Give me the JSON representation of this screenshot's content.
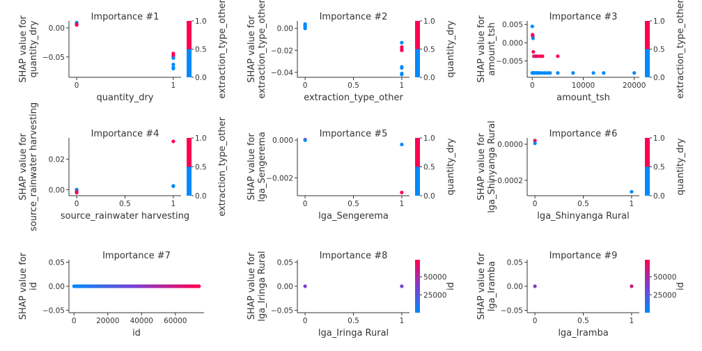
{
  "colors": {
    "low": "#008afb",
    "mid": "#7c3fd0",
    "high": "#ff0052"
  },
  "chart_data": [
    {
      "type": "scatter",
      "title": "Importance #1",
      "xlabel": "quantity_dry",
      "ylabel": [
        "SHAP value for",
        "quantity_dry"
      ],
      "xlim": [
        -0.08,
        1.08
      ],
      "ylim": [
        -0.085,
        0.012
      ],
      "xticks": [
        {
          "v": 0,
          "t": "0"
        },
        {
          "v": 1,
          "t": "1"
        }
      ],
      "yticks": [
        {
          "v": 0,
          "t": "0.00"
        },
        {
          "v": -0.05,
          "t": "−0.05"
        }
      ],
      "colorbar": {
        "label": "extraction_type_other",
        "ticks": [
          {
            "v": 0,
            "t": "0.0"
          },
          {
            "v": 0.5,
            "t": "0.5"
          },
          {
            "v": 1,
            "t": "1.0"
          }
        ],
        "range": [
          0,
          1
        ],
        "style": "binary"
      },
      "points": [
        [
          0,
          0.009,
          0
        ],
        [
          0,
          0.008,
          0
        ],
        [
          0,
          0.007,
          0
        ],
        [
          0,
          0.006,
          1
        ],
        [
          0,
          0.005,
          1
        ],
        [
          1,
          -0.044,
          1
        ],
        [
          1,
          -0.047,
          1
        ],
        [
          1,
          -0.05,
          1
        ],
        [
          1,
          -0.052,
          0
        ],
        [
          1,
          -0.063,
          0
        ],
        [
          1,
          -0.068,
          0
        ],
        [
          1,
          -0.07,
          0
        ]
      ]
    },
    {
      "type": "scatter",
      "title": "Importance #2",
      "xlabel": "extraction_type_other",
      "ylabel": [
        "SHAP value for",
        "extraction_type_other"
      ],
      "xlim": [
        -0.08,
        1.08
      ],
      "ylim": [
        -0.0445,
        0.0068
      ],
      "xticks": [
        {
          "v": 0,
          "t": "0"
        },
        {
          "v": 0.5,
          "t": "0.5"
        },
        {
          "v": 1,
          "t": "1"
        }
      ],
      "yticks": [
        {
          "v": 0,
          "t": "0.00"
        },
        {
          "v": -0.02,
          "t": "−0.02"
        },
        {
          "v": -0.04,
          "t": "−0.04"
        }
      ],
      "colorbar": {
        "label": "quantity_dry",
        "ticks": [
          {
            "v": 0,
            "t": "0.0"
          },
          {
            "v": 0.5,
            "t": "0.5"
          },
          {
            "v": 1,
            "t": "1.0"
          }
        ],
        "range": [
          0,
          1
        ],
        "style": "binary"
      },
      "points": [
        [
          0,
          0.004,
          0
        ],
        [
          0,
          0.003,
          0
        ],
        [
          0,
          0.002,
          0
        ],
        [
          0,
          0.001,
          0
        ],
        [
          0,
          0.0,
          0
        ],
        [
          1,
          -0.013,
          0
        ],
        [
          1,
          -0.017,
          1
        ],
        [
          1,
          -0.019,
          1
        ],
        [
          1,
          -0.02,
          1
        ],
        [
          1,
          -0.035,
          0
        ],
        [
          1,
          -0.036,
          0
        ],
        [
          1,
          -0.041,
          0
        ],
        [
          1,
          -0.042,
          0
        ]
      ]
    },
    {
      "type": "scatter",
      "title": "Importance #3",
      "xlabel": "amount_tsh",
      "ylabel": [
        "SHAP value for",
        "amount_tsh"
      ],
      "xlim": [
        -1000,
        21000
      ],
      "ylim": [
        -0.0095,
        0.006
      ],
      "xticks": [
        {
          "v": 0,
          "t": "0"
        },
        {
          "v": 10000,
          "t": "10000"
        },
        {
          "v": 20000,
          "t": "20000"
        }
      ],
      "yticks": [
        {
          "v": 0.005,
          "t": "0.005"
        },
        {
          "v": 0,
          "t": "0.000"
        },
        {
          "v": -0.005,
          "t": "−0.005"
        }
      ],
      "colorbar": {
        "label": "extraction_type_other",
        "ticks": [
          {
            "v": 0,
            "t": "0.0"
          },
          {
            "v": 0.5,
            "t": "0.5"
          },
          {
            "v": 1,
            "t": "1.0"
          }
        ],
        "range": [
          0,
          1
        ],
        "style": "binary"
      },
      "points": [
        [
          0,
          0.0045,
          0
        ],
        [
          50,
          0.0022,
          1
        ],
        [
          100,
          0.0017,
          1
        ],
        [
          150,
          0.0012,
          0
        ],
        [
          200,
          -0.0025,
          1
        ],
        [
          300,
          -0.0037,
          1
        ],
        [
          500,
          -0.0037,
          0
        ],
        [
          700,
          -0.0037,
          1
        ],
        [
          1000,
          -0.0037,
          1
        ],
        [
          1500,
          -0.0037,
          1
        ],
        [
          2000,
          -0.0037,
          1
        ],
        [
          5000,
          -0.0037,
          1
        ],
        [
          0,
          -0.0083,
          0
        ],
        [
          100,
          -0.0083,
          0
        ],
        [
          200,
          -0.0083,
          0
        ],
        [
          300,
          -0.0083,
          0
        ],
        [
          500,
          -0.0083,
          0
        ],
        [
          800,
          -0.0083,
          0
        ],
        [
          1000,
          -0.0083,
          0
        ],
        [
          1200,
          -0.0083,
          0
        ],
        [
          1500,
          -0.0083,
          0
        ],
        [
          2000,
          -0.0083,
          0
        ],
        [
          2500,
          -0.0083,
          0
        ],
        [
          3000,
          -0.0083,
          0
        ],
        [
          3500,
          -0.0083,
          0
        ],
        [
          5000,
          -0.0083,
          0
        ],
        [
          8000,
          -0.0083,
          0
        ],
        [
          12000,
          -0.0083,
          0
        ],
        [
          14000,
          -0.0083,
          0
        ],
        [
          20000,
          -0.0083,
          0
        ]
      ]
    },
    {
      "type": "scatter",
      "title": "Importance #4",
      "xlabel": "source_rainwater harvesting",
      "ylabel": [
        "SHAP value for",
        "source_rainwater harvesting"
      ],
      "xlim": [
        -0.08,
        1.08
      ],
      "ylim": [
        -0.004,
        0.034
      ],
      "xticks": [
        {
          "v": 0,
          "t": "0"
        },
        {
          "v": 0.5,
          "t": "0.5"
        },
        {
          "v": 1,
          "t": "1"
        }
      ],
      "yticks": [
        {
          "v": 0.02,
          "t": "0.02"
        },
        {
          "v": 0,
          "t": "0.00"
        }
      ],
      "colorbar": {
        "label": "extraction_type_other",
        "ticks": [
          {
            "v": 0,
            "t": "0.0"
          },
          {
            "v": 0.5,
            "t": "0.5"
          },
          {
            "v": 1,
            "t": "1.0"
          }
        ],
        "range": [
          0,
          1
        ],
        "style": "binary"
      },
      "points": [
        [
          0,
          0.0,
          0
        ],
        [
          0,
          -0.0005,
          0
        ],
        [
          0,
          -0.001,
          1
        ],
        [
          0,
          -0.0015,
          0
        ],
        [
          0,
          -0.002,
          1
        ],
        [
          1,
          0.0317,
          1
        ],
        [
          1,
          0.0025,
          0
        ],
        [
          1,
          0.0022,
          0
        ]
      ]
    },
    {
      "type": "scatter",
      "title": "Importance #5",
      "xlabel": "lga_Sengerema",
      "ylabel": [
        "SHAP value for",
        "lga_Sengerema"
      ],
      "xlim": [
        -0.08,
        1.08
      ],
      "ylim": [
        -0.00295,
        0.00012
      ],
      "xticks": [
        {
          "v": 0,
          "t": "0"
        },
        {
          "v": 0.5,
          "t": "0.5"
        },
        {
          "v": 1,
          "t": "1"
        }
      ],
      "yticks": [
        {
          "v": 0,
          "t": "0.000"
        },
        {
          "v": -0.002,
          "t": "−0.002"
        }
      ],
      "colorbar": {
        "label": "quantity_dry",
        "ticks": [
          {
            "v": 0,
            "t": "0.0"
          },
          {
            "v": 0.5,
            "t": "0.5"
          },
          {
            "v": 1,
            "t": "1.0"
          }
        ],
        "range": [
          0,
          1
        ],
        "style": "binary"
      },
      "points": [
        [
          0,
          3e-05,
          1
        ],
        [
          0,
          0.0,
          0
        ],
        [
          1,
          -0.00023,
          0
        ],
        [
          1,
          -0.00278,
          1
        ]
      ]
    },
    {
      "type": "scatter",
      "title": "Importance #6",
      "xlabel": "lga_Shinyanga Rural",
      "ylabel": [
        "SHAP value for",
        "lga_Shinyanga Rural"
      ],
      "xlim": [
        -0.08,
        1.08
      ],
      "ylim": [
        -0.000285,
        3.5e-05
      ],
      "xticks": [
        {
          "v": 0,
          "t": "0"
        },
        {
          "v": 0.5,
          "t": "0.5"
        },
        {
          "v": 1,
          "t": "1"
        }
      ],
      "yticks": [
        {
          "v": 0,
          "t": "0.0000"
        },
        {
          "v": -0.0002,
          "t": "−0.0002"
        }
      ],
      "colorbar": {
        "label": "quantity_dry",
        "ticks": [
          {
            "v": 0,
            "t": "0.0"
          },
          {
            "v": 0.5,
            "t": "0.5"
          },
          {
            "v": 1,
            "t": "1.0"
          }
        ],
        "range": [
          0,
          1
        ],
        "style": "binary"
      },
      "points": [
        [
          0,
          2e-05,
          1
        ],
        [
          0,
          5e-06,
          0
        ],
        [
          1,
          -0.000263,
          0
        ]
      ]
    },
    {
      "type": "scatter",
      "title": "Importance #7",
      "xlabel": "id",
      "ylabel": [
        "SHAP value for",
        "id"
      ],
      "xlim": [
        -3000,
        77000
      ],
      "ylim": [
        -0.055,
        0.055
      ],
      "xticks": [
        {
          "v": 0,
          "t": "0"
        },
        {
          "v": 20000,
          "t": "20000"
        },
        {
          "v": 40000,
          "t": "40000"
        },
        {
          "v": 60000,
          "t": "60000"
        }
      ],
      "yticks": [
        {
          "v": 0.05,
          "t": "0.05"
        },
        {
          "v": 0,
          "t": "0.00"
        },
        {
          "v": -0.05,
          "t": "−0.05"
        }
      ],
      "colorbar": null,
      "strip": {
        "from": 0,
        "to": 74000,
        "y": 0,
        "count": 120,
        "color_range": [
          0,
          74000
        ]
      }
    },
    {
      "type": "scatter",
      "title": "Importance #8",
      "xlabel": "lga_Iringa Rural",
      "ylabel": [
        "SHAP value for",
        "lga_Iringa Rural"
      ],
      "xlim": [
        -0.08,
        1.08
      ],
      "ylim": [
        -0.055,
        0.055
      ],
      "xticks": [
        {
          "v": 0,
          "t": "0"
        },
        {
          "v": 0.5,
          "t": "0.5"
        },
        {
          "v": 1,
          "t": "1"
        }
      ],
      "yticks": [
        {
          "v": 0.05,
          "t": "0.05"
        },
        {
          "v": 0,
          "t": "0.00"
        },
        {
          "v": -0.05,
          "t": "−0.05"
        }
      ],
      "colorbar": {
        "label": "id",
        "ticks": [
          {
            "v": 25000,
            "t": "25000"
          },
          {
            "v": 50000,
            "t": "50000"
          }
        ],
        "range": [
          0,
          74000
        ],
        "style": "gradient"
      },
      "points": [
        [
          0,
          0.0,
          0.5
        ],
        [
          1,
          0.0,
          0.45
        ]
      ]
    },
    {
      "type": "scatter",
      "title": "Importance #9",
      "xlabel": "lga_Iramba",
      "ylabel": [
        "SHAP value for",
        "lga_Iramba"
      ],
      "xlim": [
        -0.08,
        1.08
      ],
      "ylim": [
        -0.055,
        0.055
      ],
      "xticks": [
        {
          "v": 0,
          "t": "0"
        },
        {
          "v": 0.5,
          "t": "0.5"
        },
        {
          "v": 1,
          "t": "1"
        }
      ],
      "yticks": [
        {
          "v": 0.05,
          "t": "0.05"
        },
        {
          "v": 0,
          "t": "0.00"
        },
        {
          "v": -0.05,
          "t": "−0.05"
        }
      ],
      "colorbar": {
        "label": "id",
        "ticks": [
          {
            "v": 25000,
            "t": "25000"
          },
          {
            "v": 50000,
            "t": "50000"
          }
        ],
        "range": [
          0,
          74000
        ],
        "style": "gradient"
      },
      "points": [
        [
          0,
          0.0,
          0.55
        ],
        [
          1,
          0.0,
          0.8
        ]
      ]
    }
  ]
}
